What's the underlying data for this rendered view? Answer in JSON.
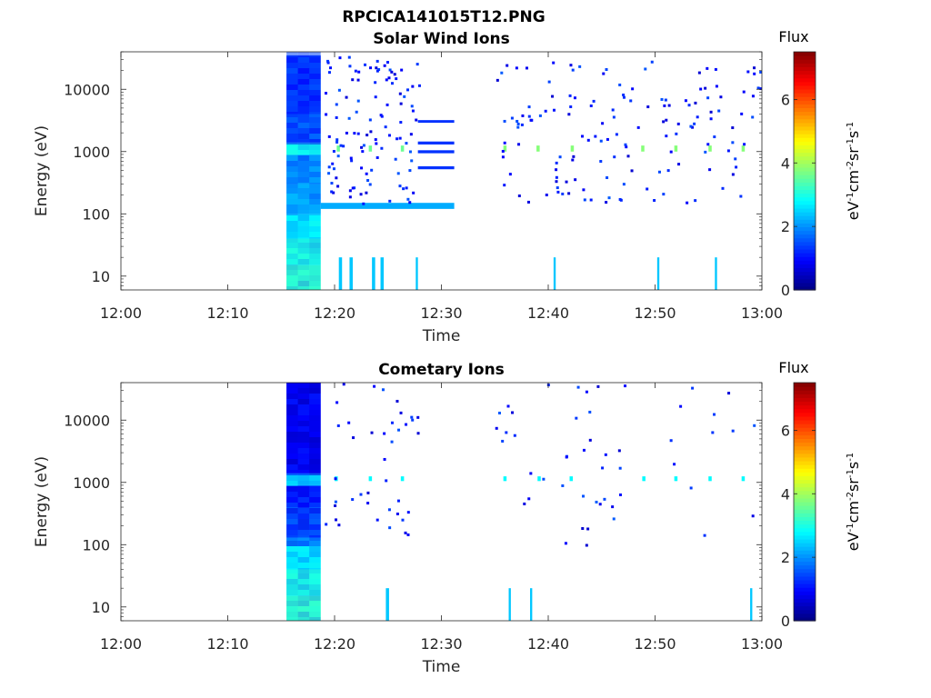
{
  "figure": {
    "filename_title": "RPCICA141015T12.PNG",
    "colorbar_title": "Flux",
    "colorbar_unit": "eV-1cm-2sr-1s-1",
    "colorbar_unit_parts": [
      "eV",
      "-1",
      "cm",
      "-2",
      "sr",
      "-1",
      "s",
      "-1"
    ],
    "colorbar_ticks": [
      "0",
      "2",
      "4",
      "6"
    ],
    "colormap": "jet",
    "colorbar_range": [
      0,
      7.5
    ]
  },
  "chart_data": [
    {
      "type": "heatmap",
      "title": "Solar Wind Ions",
      "xlabel": "Time",
      "ylabel": "Energy (eV)",
      "xlim": [
        "12:00",
        "13:00"
      ],
      "ylim": [
        6,
        40000
      ],
      "yscale": "log",
      "xticks": [
        "12:00",
        "12:10",
        "12:20",
        "12:30",
        "12:40",
        "12:50",
        "13:00"
      ],
      "yticks": [
        "10",
        "100",
        "1000",
        "10000"
      ],
      "grid": false,
      "cells": [
        {
          "t0": 15.5,
          "t1": 18.7,
          "e0": 6,
          "e1": 15,
          "v": 3.5
        },
        {
          "t0": 15.5,
          "t1": 18.7,
          "e0": 15,
          "e1": 40,
          "v": 3.2
        },
        {
          "t0": 15.5,
          "t1": 18.7,
          "e0": 40,
          "e1": 100,
          "v": 2.7
        },
        {
          "t0": 15.5,
          "t1": 18.7,
          "e0": 100,
          "e1": 300,
          "v": 2.3
        },
        {
          "t0": 15.5,
          "t1": 18.7,
          "e0": 300,
          "e1": 900,
          "v": 2.0
        },
        {
          "t0": 15.5,
          "t1": 18.7,
          "e0": 900,
          "e1": 1400,
          "v": 3.0
        },
        {
          "t0": 15.5,
          "t1": 18.7,
          "e0": 1400,
          "e1": 4000,
          "v": 1.7
        },
        {
          "t0": 15.5,
          "t1": 18.7,
          "e0": 4000,
          "e1": 35000,
          "v": 1.2
        },
        {
          "t0": 18.7,
          "t1": 31.2,
          "e0": 120,
          "e1": 150,
          "v": 2.2
        },
        {
          "t0": 27.8,
          "t1": 31.2,
          "e0": 2900,
          "e1": 3200,
          "v": 1.3
        },
        {
          "t0": 27.8,
          "t1": 31.2,
          "e0": 1300,
          "e1": 1450,
          "v": 1.3
        },
        {
          "t0": 27.8,
          "t1": 31.2,
          "e0": 940,
          "e1": 1050,
          "v": 1.3
        },
        {
          "t0": 27.8,
          "t1": 31.2,
          "e0": 520,
          "e1": 580,
          "v": 1.3
        },
        {
          "t0": 20.4,
          "t1": 20.7,
          "e0": 6,
          "e1": 20,
          "v": 2.4
        },
        {
          "t0": 21.4,
          "t1": 21.7,
          "e0": 6,
          "e1": 20,
          "v": 2.4
        },
        {
          "t0": 23.5,
          "t1": 23.8,
          "e0": 6,
          "e1": 20,
          "v": 2.4
        },
        {
          "t0": 24.3,
          "t1": 24.6,
          "e0": 6,
          "e1": 20,
          "v": 2.4
        },
        {
          "t0": 27.6,
          "t1": 27.8,
          "e0": 6,
          "e1": 20,
          "v": 2.4
        },
        {
          "t0": 40.5,
          "t1": 40.7,
          "e0": 6,
          "e1": 20,
          "v": 2.4
        },
        {
          "t0": 50.2,
          "t1": 50.4,
          "e0": 6,
          "e1": 20,
          "v": 2.4
        },
        {
          "t0": 55.6,
          "t1": 55.8,
          "e0": 6,
          "e1": 20,
          "v": 2.4
        },
        {
          "t0": 20.2,
          "t1": 20.5,
          "e0": 1000,
          "e1": 1250,
          "v": 3.6
        },
        {
          "t0": 23.2,
          "t1": 23.5,
          "e0": 1000,
          "e1": 1250,
          "v": 3.6
        },
        {
          "t0": 26.2,
          "t1": 26.5,
          "e0": 1000,
          "e1": 1250,
          "v": 3.6
        },
        {
          "t0": 35.8,
          "t1": 36.1,
          "e0": 1000,
          "e1": 1250,
          "v": 3.8
        },
        {
          "t0": 38.9,
          "t1": 39.2,
          "e0": 1000,
          "e1": 1250,
          "v": 3.8
        },
        {
          "t0": 42.1,
          "t1": 42.4,
          "e0": 1000,
          "e1": 1250,
          "v": 3.8
        },
        {
          "t0": 48.7,
          "t1": 49.0,
          "e0": 1000,
          "e1": 1250,
          "v": 3.8
        },
        {
          "t0": 51.8,
          "t1": 52.1,
          "e0": 1000,
          "e1": 1250,
          "v": 3.8
        },
        {
          "t0": 55.0,
          "t1": 55.3,
          "e0": 1000,
          "e1": 1250,
          "v": 3.8
        },
        {
          "t0": 58.1,
          "t1": 58.4,
          "e0": 1000,
          "e1": 1250,
          "v": 3.8
        }
      ],
      "scatter_note": "additional sparse dark-blue flux pixels (values ~0.5-1.5) between 12:19 and 13:00 across 150-35000 eV"
    },
    {
      "type": "heatmap",
      "title": "Cometary Ions",
      "xlabel": "Time",
      "ylabel": "Energy (eV)",
      "xlim": [
        "12:00",
        "13:00"
      ],
      "ylim": [
        6,
        40000
      ],
      "yscale": "log",
      "xticks": [
        "12:00",
        "12:10",
        "12:20",
        "12:30",
        "12:40",
        "12:50",
        "13:00"
      ],
      "yticks": [
        "10",
        "100",
        "1000",
        "10000"
      ],
      "grid": false,
      "cells": [
        {
          "t0": 15.5,
          "t1": 18.7,
          "e0": 6,
          "e1": 15,
          "v": 3.5
        },
        {
          "t0": 15.5,
          "t1": 18.7,
          "e0": 15,
          "e1": 40,
          "v": 3.2
        },
        {
          "t0": 15.5,
          "t1": 18.7,
          "e0": 40,
          "e1": 130,
          "v": 2.6
        },
        {
          "t0": 15.5,
          "t1": 18.7,
          "e0": 130,
          "e1": 400,
          "v": 1.6
        },
        {
          "t0": 15.5,
          "t1": 18.7,
          "e0": 400,
          "e1": 900,
          "v": 1.1
        },
        {
          "t0": 15.5,
          "t1": 18.7,
          "e0": 900,
          "e1": 1400,
          "v": 2.3
        },
        {
          "t0": 15.5,
          "t1": 18.7,
          "e0": 1400,
          "e1": 40000,
          "v": 0.9
        },
        {
          "t0": 24.8,
          "t1": 25.1,
          "e0": 6,
          "e1": 20,
          "v": 2.4
        },
        {
          "t0": 36.3,
          "t1": 36.5,
          "e0": 6,
          "e1": 20,
          "v": 2.4
        },
        {
          "t0": 38.3,
          "t1": 38.5,
          "e0": 6,
          "e1": 20,
          "v": 2.4
        },
        {
          "t0": 58.9,
          "t1": 59.1,
          "e0": 6,
          "e1": 20,
          "v": 2.4
        },
        {
          "t0": 20.0,
          "t1": 20.3,
          "e0": 1050,
          "e1": 1250,
          "v": 2.8
        },
        {
          "t0": 23.2,
          "t1": 23.5,
          "e0": 1050,
          "e1": 1250,
          "v": 2.8
        },
        {
          "t0": 26.2,
          "t1": 26.5,
          "e0": 1050,
          "e1": 1250,
          "v": 2.8
        },
        {
          "t0": 35.8,
          "t1": 36.1,
          "e0": 1050,
          "e1": 1250,
          "v": 2.8
        },
        {
          "t0": 39.0,
          "t1": 39.3,
          "e0": 1050,
          "e1": 1250,
          "v": 2.8
        },
        {
          "t0": 42.0,
          "t1": 42.3,
          "e0": 1050,
          "e1": 1250,
          "v": 2.8
        },
        {
          "t0": 48.8,
          "t1": 49.1,
          "e0": 1050,
          "e1": 1250,
          "v": 2.8
        },
        {
          "t0": 51.8,
          "t1": 52.1,
          "e0": 1050,
          "e1": 1250,
          "v": 2.8
        },
        {
          "t0": 55.0,
          "t1": 55.3,
          "e0": 1050,
          "e1": 1250,
          "v": 2.8
        },
        {
          "t0": 58.1,
          "t1": 58.4,
          "e0": 1050,
          "e1": 1250,
          "v": 2.8
        }
      ],
      "scatter_note": "additional sparse dark-blue flux pixels (values ~0.5-1.5) between 12:19 and 13:00 across 100-40000 eV"
    }
  ]
}
